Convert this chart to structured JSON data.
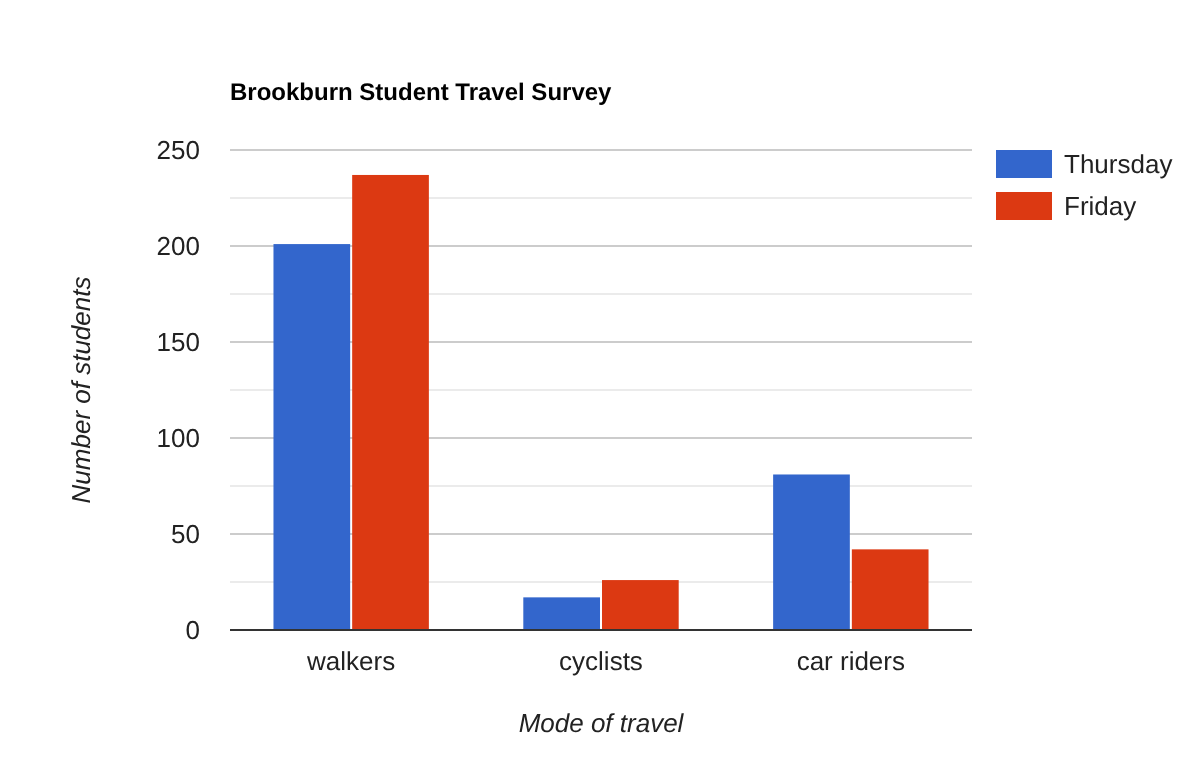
{
  "chart_data": {
    "type": "bar",
    "title": "Brookburn Student Travel Survey",
    "xlabel": "Mode of travel",
    "ylabel": "Number of students",
    "categories": [
      "walkers",
      "cyclists",
      "car riders"
    ],
    "series": [
      {
        "name": "Thursday",
        "color": "#3366cc",
        "values": [
          201,
          17,
          81
        ]
      },
      {
        "name": "Friday",
        "color": "#dc3912",
        "values": [
          237,
          26,
          42
        ]
      }
    ],
    "ylim": [
      0,
      250
    ],
    "yticks": [
      0,
      {
        "value": 25,
        "label": null
      },
      50,
      {
        "value": 75,
        "label": null
      },
      100,
      {
        "value": 125,
        "label": null
      },
      150,
      {
        "value": 175,
        "label": null
      },
      200,
      {
        "value": 225,
        "label": null
      },
      250
    ],
    "grid": "y",
    "legend": "right"
  }
}
